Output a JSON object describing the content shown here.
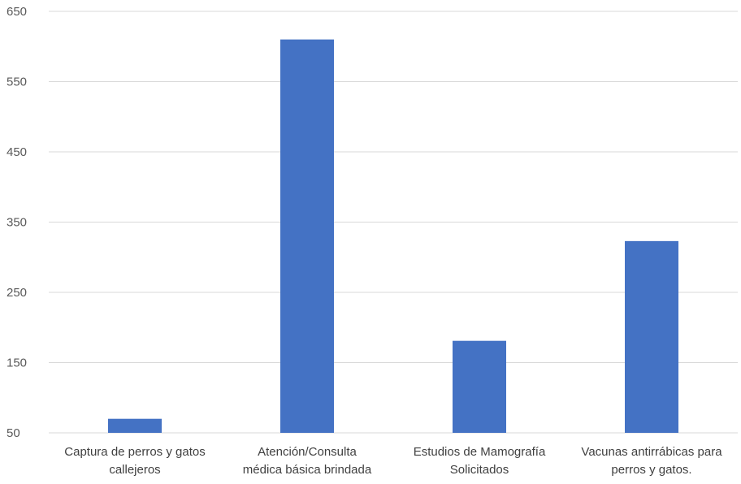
{
  "colors": {
    "bar": "#4472c4",
    "grid": "#d9d9d9",
    "text": "#595959"
  },
  "chart_data": {
    "type": "bar",
    "title": "",
    "xlabel": "",
    "ylabel": "",
    "ylim": [
      50,
      650
    ],
    "yticks": [
      "650",
      "550",
      "450",
      "350",
      "250",
      "150",
      "50"
    ],
    "grid": true,
    "legend": "none",
    "categories": [
      [
        "Captura de perros y gatos",
        "callejeros"
      ],
      [
        "Atención/Consulta",
        "médica básica brindada"
      ],
      [
        "Estudios de Mamografía",
        "Solicitados"
      ],
      [
        "Vacunas antirrábicas para",
        "perros y gatos."
      ]
    ],
    "values": [
      70,
      610,
      181,
      323
    ]
  }
}
